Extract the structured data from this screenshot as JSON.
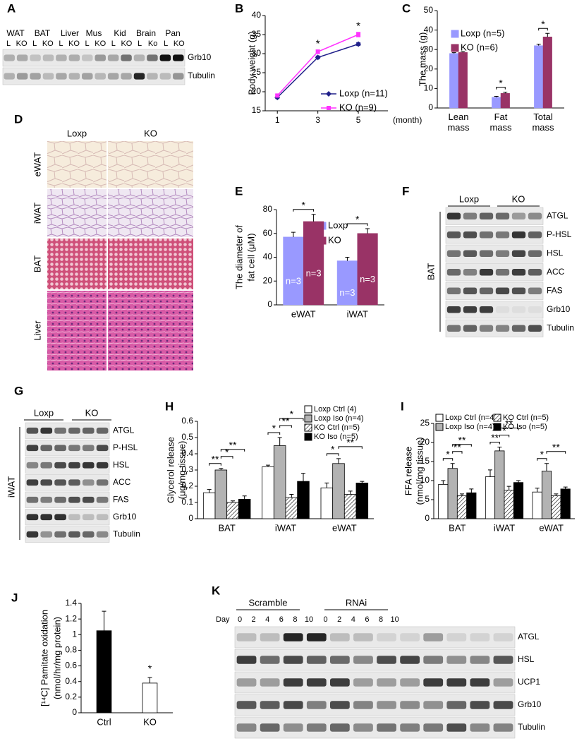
{
  "panel_labels": [
    "A",
    "B",
    "C",
    "D",
    "E",
    "F",
    "G",
    "H",
    "I",
    "J",
    "K"
  ],
  "blot_a": {
    "tissues": [
      "WAT",
      "BAT",
      "Liver",
      "Mus",
      "Kid",
      "Brain",
      "Pan"
    ],
    "lanes": [
      "L",
      "KO",
      "L",
      "KO",
      "L",
      "KO",
      "L",
      "KO",
      "L",
      "KO",
      "L",
      "Ko",
      "L",
      "KO"
    ],
    "proteins": [
      "Grb10",
      "Tubulin"
    ]
  },
  "histology_d": {
    "columns": [
      "Loxp",
      "KO"
    ],
    "rows": [
      "eWAT",
      "iWAT",
      "BAT",
      "Liver"
    ]
  },
  "blot_f": {
    "groups": [
      "Loxp",
      "KO"
    ],
    "tissue": "BAT",
    "proteins": [
      "ATGL",
      "P-HSL",
      "HSL",
      "ACC",
      "FAS",
      "Grb10",
      "Tubulin"
    ]
  },
  "blot_g": {
    "groups": [
      "Loxp",
      "KO"
    ],
    "tissue": "iWAT",
    "proteins": [
      "ATGL",
      "P-HSL",
      "HSL",
      "ACC",
      "FAS",
      "Grb10",
      "Tubulin"
    ]
  },
  "blot_k": {
    "groups": [
      "Scramble",
      "RNAi"
    ],
    "day_label": "Day",
    "days": [
      0,
      2,
      4,
      6,
      8,
      10,
      0,
      2,
      4,
      6,
      8,
      10
    ],
    "proteins": [
      "ATGL",
      "HSL",
      "UCP1",
      "Grb10",
      "Tubulin"
    ]
  },
  "chart_data": [
    {
      "type": "line",
      "ylabel": "Body weight (g)",
      "xlabel": "(month)",
      "x": [
        1,
        3,
        5
      ],
      "xlim": [
        0.4,
        6.46
      ],
      "xticks": [
        1,
        3,
        5
      ],
      "ylim": [
        15,
        40
      ],
      "yticks": [
        15,
        20,
        25,
        30,
        35,
        40
      ],
      "series": [
        {
          "name": "Loxp (n=11)",
          "color": "#20208a",
          "marker": "diamond",
          "values": [
            18.5,
            29,
            32.5
          ],
          "errors": [
            0.3,
            0.4,
            0.4
          ]
        },
        {
          "name": "KO (n=9)",
          "color": "#ff33ff",
          "marker": "square",
          "values": [
            19,
            30.5,
            35
          ],
          "errors": [
            0.3,
            0.5,
            0.6
          ]
        }
      ],
      "significance": [
        "*",
        "*"
      ]
    },
    {
      "type": "bar",
      "ylabel": "The mass (g)",
      "categories": [
        "Lean mass",
        "Fat mass",
        "Total mass"
      ],
      "ylim": [
        0,
        50
      ],
      "yticks": [
        0,
        10,
        20,
        30,
        40,
        50
      ],
      "series": [
        {
          "name": "Loxp (n=5)",
          "color": "#9999ff",
          "values": [
            28,
            5.5,
            32
          ],
          "errors": [
            0.4,
            0.5,
            0.8
          ]
        },
        {
          "name": "KO (n=6)",
          "color": "#993366",
          "values": [
            28.5,
            7.5,
            36.5
          ],
          "errors": [
            0.5,
            0.6,
            1.8
          ]
        }
      ],
      "significance": [
        "*",
        "*"
      ]
    },
    {
      "type": "bar",
      "ylabel": [
        "The diameter of",
        "fat cell (μM)"
      ],
      "categories": [
        "eWAT",
        "iWAT"
      ],
      "ylim": [
        0,
        80
      ],
      "yticks": [
        0,
        20,
        40,
        60,
        80
      ],
      "series": [
        {
          "name": "Loxp",
          "color": "#9999ff",
          "values": [
            57,
            37
          ],
          "errors": [
            4,
            3
          ]
        },
        {
          "name": "KO",
          "color": "#993366",
          "values": [
            70,
            60
          ],
          "errors": [
            6,
            4
          ]
        }
      ],
      "annotations": [
        "n=3",
        "n=3",
        "n=3",
        "n=3"
      ],
      "significance": [
        "*",
        "*"
      ]
    },
    {
      "type": "bar",
      "ylabel": [
        "Glycerol release",
        "(μg/mg tissue)"
      ],
      "categories": [
        "BAT",
        "iWAT",
        "eWAT"
      ],
      "ylim": [
        0,
        0.6
      ],
      "yticks": [
        0,
        0.1,
        0.2,
        0.3,
        0.4,
        0.5,
        0.6
      ],
      "outline": true,
      "series": [
        {
          "name": "Loxp Ctrl (4)",
          "color": "#ffffff",
          "values": [
            0.16,
            0.32,
            0.19
          ],
          "errors": [
            0.02,
            0.01,
            0.03
          ]
        },
        {
          "name": "Loxp Iso (n=4)",
          "color": "#b3b3b3",
          "values": [
            0.3,
            0.45,
            0.34
          ],
          "errors": [
            0.01,
            0.05,
            0.03
          ]
        },
        {
          "name": "KO Ctrl (n=5)",
          "color": "#ffffff",
          "hatch": true,
          "values": [
            0.1,
            0.13,
            0.15
          ],
          "errors": [
            0.01,
            0.02,
            0.02
          ]
        },
        {
          "name": "KO Iso (n=5)",
          "color": "#000000",
          "values": [
            0.12,
            0.23,
            0.22
          ],
          "errors": [
            0.02,
            0.05,
            0.01
          ]
        }
      ],
      "significance": [
        "**",
        "*",
        "**",
        "*",
        "**",
        "*",
        "*",
        "**"
      ]
    },
    {
      "type": "bar",
      "ylabel": [
        "FFA release",
        "(nmol/mg tissue)"
      ],
      "categories": [
        "BAT",
        "iWAT",
        "eWAT"
      ],
      "ylim": [
        0,
        25
      ],
      "yticks": [
        0,
        5,
        10,
        15,
        20,
        25
      ],
      "outline": true,
      "series": [
        {
          "name": "Loxp Ctrl (n=4)",
          "color": "#ffffff",
          "values": [
            9,
            11,
            7
          ],
          "errors": [
            1,
            1.8,
            1
          ]
        },
        {
          "name": "Loxp Iso (n=4)",
          "color": "#b3b3b3",
          "values": [
            13.2,
            17.8,
            12.5
          ],
          "errors": [
            1.3,
            1,
            2
          ]
        },
        {
          "name": "KO Ctrl (n=5)",
          "color": "#ffffff",
          "hatch": true,
          "values": [
            6,
            7.5,
            6
          ],
          "errors": [
            0.5,
            1,
            0.5
          ]
        },
        {
          "name": "KO Iso (n=5)",
          "color": "#000000",
          "values": [
            6.8,
            9.5,
            7.8
          ],
          "errors": [
            1,
            0.5,
            0.5
          ]
        }
      ],
      "significance": [
        "*",
        "**",
        "**",
        "**",
        "*",
        "**",
        "*",
        "**"
      ]
    },
    {
      "type": "bar",
      "ylabel": [
        "[¹⁴C] Pamitate oxidation",
        "(nmol/hr/mg protein)"
      ],
      "categories": [
        "Ctrl",
        "KO"
      ],
      "ylim": [
        0,
        1.4
      ],
      "yticks": [
        0,
        0.2,
        0.4,
        0.6,
        0.8,
        1,
        1.2,
        1.4
      ],
      "outline": true,
      "series": [
        {
          "colors": [
            "#000000",
            "#ffffff"
          ],
          "values": [
            1.05,
            0.38
          ],
          "errors": [
            0.25,
            0.07
          ]
        }
      ],
      "significance": [
        "*"
      ]
    }
  ]
}
